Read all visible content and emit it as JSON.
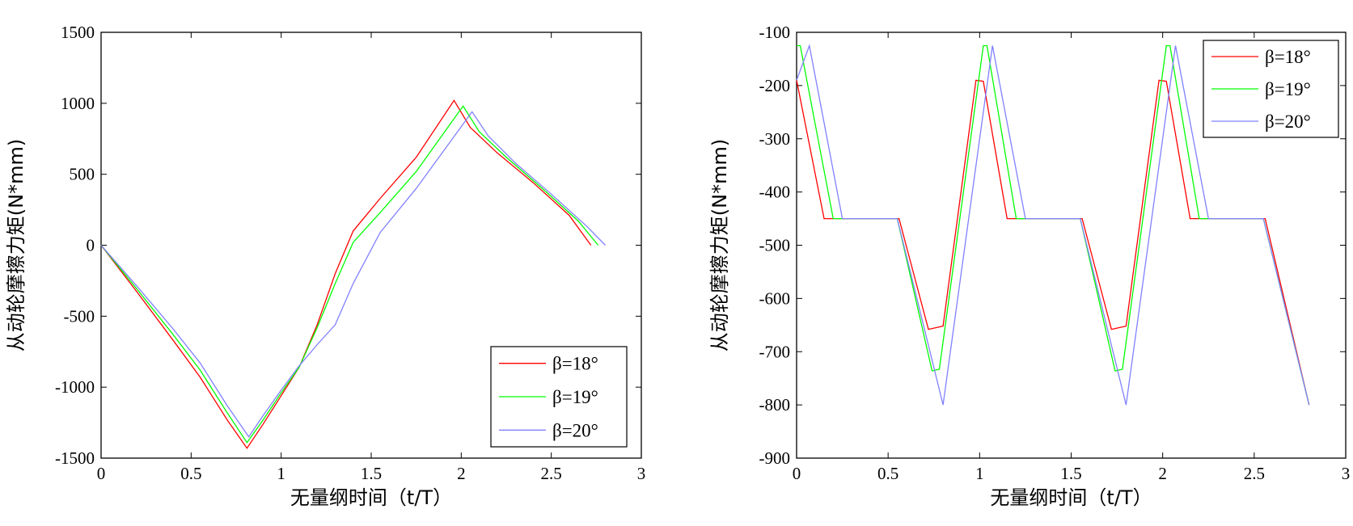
{
  "chart_data": [
    {
      "type": "line",
      "xlabel": "无量纲时间（t/T）",
      "ylabel": "从动轮摩擦力矩(N*mm)",
      "xlim": [
        0,
        3
      ],
      "ylim": [
        -1500,
        1500
      ],
      "xticks": [
        "0",
        "0.5",
        "1",
        "1.5",
        "2",
        "2.5",
        "3"
      ],
      "yticks": [
        "-1500",
        "-1000",
        "-500",
        "0",
        "500",
        "1000",
        "1500"
      ],
      "grid": false,
      "legend_position": "bottom-right",
      "series": [
        {
          "name": "β=18°",
          "color": "#ff0000",
          "points": [
            [
              0,
              0
            ],
            [
              0.2,
              -330
            ],
            [
              0.4,
              -670
            ],
            [
              0.55,
              -930
            ],
            [
              0.7,
              -1230
            ],
            [
              0.81,
              -1430
            ],
            [
              0.9,
              -1260
            ],
            [
              1.0,
              -1060
            ],
            [
              1.1,
              -860
            ],
            [
              1.2,
              -560
            ],
            [
              1.3,
              -200
            ],
            [
              1.4,
              100
            ],
            [
              1.55,
              330
            ],
            [
              1.75,
              620
            ],
            [
              1.96,
              1020
            ],
            [
              2.05,
              830
            ],
            [
              2.2,
              650
            ],
            [
              2.4,
              440
            ],
            [
              2.6,
              210
            ],
            [
              2.72,
              0
            ]
          ]
        },
        {
          "name": "β=19°",
          "color": "#00ff00",
          "points": [
            [
              0,
              0
            ],
            [
              0.2,
              -310
            ],
            [
              0.4,
              -630
            ],
            [
              0.55,
              -880
            ],
            [
              0.7,
              -1180
            ],
            [
              0.81,
              -1390
            ],
            [
              0.9,
              -1230
            ],
            [
              1.0,
              -1040
            ],
            [
              1.1,
              -860
            ],
            [
              1.2,
              -580
            ],
            [
              1.3,
              -270
            ],
            [
              1.4,
              20
            ],
            [
              1.55,
              230
            ],
            [
              1.75,
              520
            ],
            [
              2.01,
              980
            ],
            [
              2.1,
              800
            ],
            [
              2.25,
              620
            ],
            [
              2.45,
              400
            ],
            [
              2.65,
              170
            ],
            [
              2.76,
              0
            ]
          ]
        },
        {
          "name": "β=20°",
          "color": "#8080ff",
          "points": [
            [
              0,
              0
            ],
            [
              0.2,
              -290
            ],
            [
              0.4,
              -590
            ],
            [
              0.55,
              -830
            ],
            [
              0.7,
              -1130
            ],
            [
              0.82,
              -1350
            ],
            [
              0.9,
              -1200
            ],
            [
              1.0,
              -1020
            ],
            [
              1.1,
              -850
            ],
            [
              1.2,
              -700
            ],
            [
              1.3,
              -560
            ],
            [
              1.4,
              -270
            ],
            [
              1.55,
              90
            ],
            [
              1.75,
              400
            ],
            [
              2.06,
              940
            ],
            [
              2.15,
              770
            ],
            [
              2.3,
              580
            ],
            [
              2.5,
              360
            ],
            [
              2.7,
              130
            ],
            [
              2.8,
              0
            ]
          ]
        }
      ]
    },
    {
      "type": "line",
      "xlabel": "无量纲时间（t/T）",
      "ylabel": "从动轮摩擦力矩(N*mm)",
      "xlim": [
        0,
        3
      ],
      "ylim": [
        -900,
        -100
      ],
      "xticks": [
        "0",
        "0.5",
        "1",
        "1.5",
        "2",
        "2.5",
        "3"
      ],
      "yticks": [
        "-900",
        "-800",
        "-700",
        "-600",
        "-500",
        "-400",
        "-300",
        "-200",
        "-100"
      ],
      "grid": false,
      "legend_position": "top-right",
      "series": [
        {
          "name": "β=18°",
          "color": "#ff0000",
          "points": [
            [
              0,
              -190
            ],
            [
              0.15,
              -450
            ],
            [
              0.56,
              -450
            ],
            [
              0.72,
              -658
            ],
            [
              0.8,
              -652
            ],
            [
              0.98,
              -190
            ],
            [
              1.02,
              -192
            ],
            [
              1.15,
              -450
            ],
            [
              1.56,
              -450
            ],
            [
              1.72,
              -658
            ],
            [
              1.8,
              -652
            ],
            [
              1.98,
              -190
            ],
            [
              2.02,
              -192
            ],
            [
              2.15,
              -450
            ],
            [
              2.56,
              -450
            ],
            [
              2.8,
              -800
            ]
          ]
        },
        {
          "name": "β=19°",
          "color": "#00ff00",
          "points": [
            [
              0,
              -125
            ],
            [
              0.02,
              -125
            ],
            [
              0.2,
              -450
            ],
            [
              0.55,
              -450
            ],
            [
              0.74,
              -736
            ],
            [
              0.78,
              -733
            ],
            [
              1.02,
              -125
            ],
            [
              1.04,
              -125
            ],
            [
              1.2,
              -450
            ],
            [
              1.55,
              -450
            ],
            [
              1.74,
              -736
            ],
            [
              1.78,
              -733
            ],
            [
              2.02,
              -125
            ],
            [
              2.04,
              -125
            ],
            [
              2.2,
              -450
            ],
            [
              2.55,
              -450
            ],
            [
              2.8,
              -800
            ]
          ]
        },
        {
          "name": "β=20°",
          "color": "#8080ff",
          "points": [
            [
              0,
              -190
            ],
            [
              0.07,
              -125
            ],
            [
              0.25,
              -450
            ],
            [
              0.55,
              -450
            ],
            [
              0.8,
              -800
            ],
            [
              1.07,
              -125
            ],
            [
              1.25,
              -450
            ],
            [
              1.55,
              -450
            ],
            [
              1.8,
              -800
            ],
            [
              2.07,
              -125
            ],
            [
              2.25,
              -450
            ],
            [
              2.55,
              -450
            ],
            [
              2.8,
              -800
            ]
          ]
        }
      ]
    }
  ]
}
